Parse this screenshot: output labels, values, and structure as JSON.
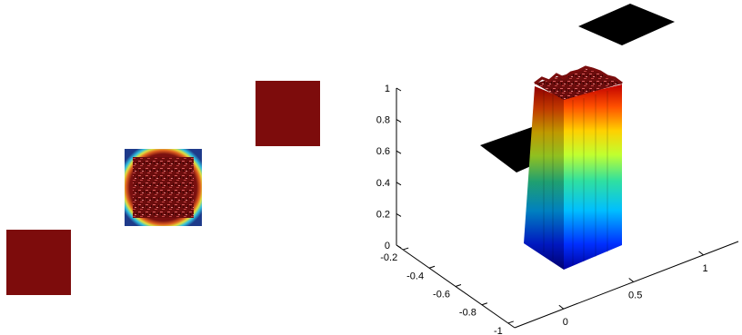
{
  "figure": {
    "panel_left": {
      "tiles": [
        {
          "content": "uniform"
        },
        {
          "content": "textured-surface-top-view"
        },
        {
          "content": "uniform"
        }
      ]
    },
    "panel_right": {
      "view": "3d-surface"
    }
  },
  "chart_data": [
    {
      "type": "heatmap",
      "title": "",
      "xlabel": "",
      "ylabel": "",
      "grid": false,
      "description_of_tiles": [
        "uniform red patch",
        "noisy square plateau with colormap rim",
        "uniform red patch"
      ],
      "colors": {
        "uniform": "#7d0c0c",
        "plateau_dark": "#5b0808",
        "rim": "#1e3a8a"
      }
    },
    {
      "type": "surface",
      "title": "",
      "xlabel": "",
      "ylabel": "",
      "zlabel": "",
      "colormap": "jet",
      "z_ticks": [
        "0",
        "0.2",
        "0.4",
        "0.6",
        "0.8",
        "1"
      ],
      "y_ticks": [
        "-0.2",
        "-0.4",
        "-0.6",
        "-0.8",
        "-1"
      ],
      "x_ticks": [
        "0",
        "0.5",
        "1"
      ],
      "zlim": [
        0,
        1
      ],
      "ylim": [
        -1,
        -0.2
      ],
      "xlim": [
        0,
        1
      ],
      "surface": {
        "shape": "square plateau",
        "base_value": 0,
        "plateau_value": 1,
        "top": "noisy red"
      },
      "planes": [
        {
          "fill": "#000000"
        },
        {
          "fill": "#000000"
        }
      ]
    }
  ]
}
